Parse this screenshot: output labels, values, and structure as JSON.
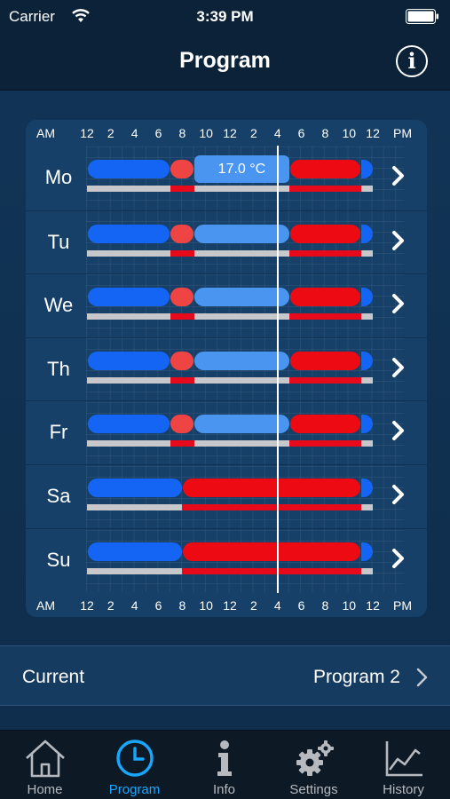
{
  "status_bar": {
    "carrier": "Carrier",
    "time": "3:39 PM"
  },
  "nav": {
    "title": "Program",
    "info_glyph": "i"
  },
  "schedule": {
    "axis": {
      "left": "AM",
      "right": "PM",
      "ticks": [
        "12",
        "2",
        "4",
        "6",
        "8",
        "10",
        "12",
        "2",
        "4",
        "6",
        "8",
        "10",
        "12"
      ]
    },
    "tooltip": "17.0 °C",
    "now_hour": 16,
    "colors": {
      "cold": "#1565f5",
      "medium": "#4a95f0",
      "warm": "#ef4444",
      "hot": "#ee0a12",
      "off": "#c6c8cb",
      "on": "#e8091a"
    },
    "days": [
      {
        "label": "Mo",
        "type": "weekday"
      },
      {
        "label": "Tu",
        "type": "weekday"
      },
      {
        "label": "We",
        "type": "weekday"
      },
      {
        "label": "Th",
        "type": "weekday"
      },
      {
        "label": "Fr",
        "type": "weekday"
      },
      {
        "label": "Sa",
        "type": "weekend"
      },
      {
        "label": "Su",
        "type": "weekend"
      }
    ]
  },
  "current": {
    "label": "Current",
    "value": "Program 2"
  },
  "tabs": [
    {
      "label": "Home",
      "icon": "house-icon",
      "active": false
    },
    {
      "label": "Program",
      "icon": "clock-icon",
      "active": true
    },
    {
      "label": "Info",
      "icon": "info-icon",
      "active": false
    },
    {
      "label": "Settings",
      "icon": "gears-icon",
      "active": false
    },
    {
      "label": "History",
      "icon": "chart-icon",
      "active": false
    }
  ]
}
